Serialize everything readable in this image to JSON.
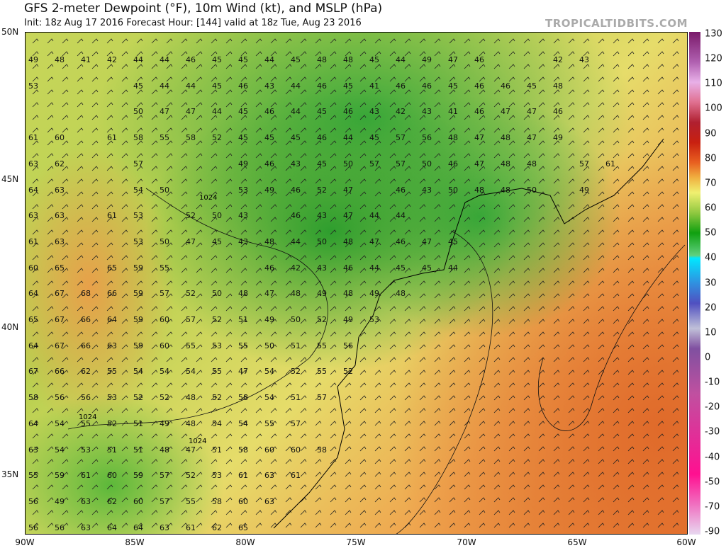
{
  "header": {
    "title": "GFS 2-meter Dewpoint (°F), 10m Wind (kt), and MSLP (hPa)",
    "subtitle": "Init: 18z Aug 17 2016   Forecast Hour: [144]   valid at 18z Tue, Aug 23 2016",
    "brand": "TROPICALTIDBITS.COM"
  },
  "axes": {
    "lat_labels": [
      "50N",
      "45N",
      "40N",
      "35N"
    ],
    "lon_labels": [
      "90W",
      "85W",
      "80W",
      "75W",
      "70W",
      "65W",
      "60W"
    ]
  },
  "colorbar": {
    "labels": [
      "130",
      "120",
      "110",
      "100",
      "90",
      "80",
      "70",
      "60",
      "50",
      "40",
      "30",
      "20",
      "10",
      "0",
      "-10",
      "-20",
      "-30",
      "-40",
      "-50",
      "-70",
      "-90"
    ]
  },
  "isobar_labels": [
    "1024",
    "1024",
    "1024"
  ],
  "dewpoint_rows": [
    [
      "49",
      "48",
      "41",
      "42",
      "44",
      "44",
      "46",
      "45",
      "45",
      "44",
      "45",
      "48",
      "48",
      "45",
      "44",
      "49",
      "47",
      "46",
      "",
      "",
      "42",
      "43"
    ],
    [
      "53",
      "",
      "",
      "",
      "45",
      "44",
      "44",
      "45",
      "46",
      "43",
      "44",
      "46",
      "45",
      "41",
      "46",
      "46",
      "45",
      "46",
      "46",
      "45",
      "48"
    ],
    [
      "",
      "",
      "",
      "",
      "50",
      "47",
      "47",
      "44",
      "45",
      "46",
      "44",
      "45",
      "46",
      "43",
      "42",
      "43",
      "41",
      "46",
      "47",
      "47",
      "46"
    ],
    [
      "61",
      "60",
      "",
      "61",
      "58",
      "55",
      "58",
      "52",
      "45",
      "45",
      "45",
      "46",
      "44",
      "45",
      "57",
      "56",
      "48",
      "47",
      "48",
      "47",
      "49"
    ],
    [
      "63",
      "62",
      "",
      "",
      "57",
      "",
      "",
      "",
      "49",
      "46",
      "43",
      "45",
      "50",
      "57",
      "57",
      "50",
      "46",
      "47",
      "48",
      "48",
      "",
      "57",
      "61"
    ],
    [
      "64",
      "63",
      "",
      "",
      "54",
      "50",
      "",
      "",
      "53",
      "49",
      "46",
      "52",
      "47",
      "",
      "46",
      "43",
      "50",
      "48",
      "48",
      "50",
      "",
      "49"
    ],
    [
      "63",
      "63",
      "",
      "61",
      "53",
      "",
      "52",
      "50",
      "43",
      "",
      "46",
      "43",
      "47",
      "44",
      "44"
    ],
    [
      "61",
      "63",
      "",
      "",
      "53",
      "50",
      "47",
      "45",
      "43",
      "48",
      "44",
      "50",
      "48",
      "47",
      "46",
      "47",
      "45"
    ],
    [
      "60",
      "65",
      "",
      "65",
      "59",
      "55",
      "",
      "",
      "",
      "46",
      "42",
      "43",
      "46",
      "44",
      "45",
      "45",
      "44"
    ],
    [
      "64",
      "67",
      "68",
      "66",
      "59",
      "57",
      "52",
      "50",
      "48",
      "47",
      "48",
      "49",
      "48",
      "49",
      "48"
    ],
    [
      "65",
      "67",
      "66",
      "64",
      "59",
      "60",
      "57",
      "52",
      "51",
      "49",
      "50",
      "52",
      "49",
      "53"
    ],
    [
      "64",
      "67",
      "66",
      "63",
      "59",
      "60",
      "55",
      "53",
      "55",
      "50",
      "51",
      "55",
      "56"
    ],
    [
      "67",
      "66",
      "62",
      "55",
      "54",
      "54",
      "54",
      "55",
      "47",
      "54",
      "52",
      "55",
      "52"
    ],
    [
      "58",
      "56",
      "56",
      "53",
      "52",
      "52",
      "48",
      "52",
      "58",
      "54",
      "51",
      "57"
    ],
    [
      "64",
      "54",
      "55",
      "52",
      "51",
      "49",
      "48",
      "54",
      "54",
      "55",
      "57"
    ],
    [
      "63",
      "54",
      "53",
      "51",
      "51",
      "48",
      "47",
      "51",
      "58",
      "60",
      "60",
      "58"
    ],
    [
      "55",
      "59",
      "61",
      "60",
      "59",
      "57",
      "52",
      "53",
      "61",
      "63",
      "61"
    ],
    [
      "56",
      "49",
      "63",
      "62",
      "60",
      "57",
      "55",
      "58",
      "60",
      "63"
    ],
    [
      "56",
      "56",
      "63",
      "64",
      "64",
      "63",
      "61",
      "62",
      "65"
    ]
  ]
}
